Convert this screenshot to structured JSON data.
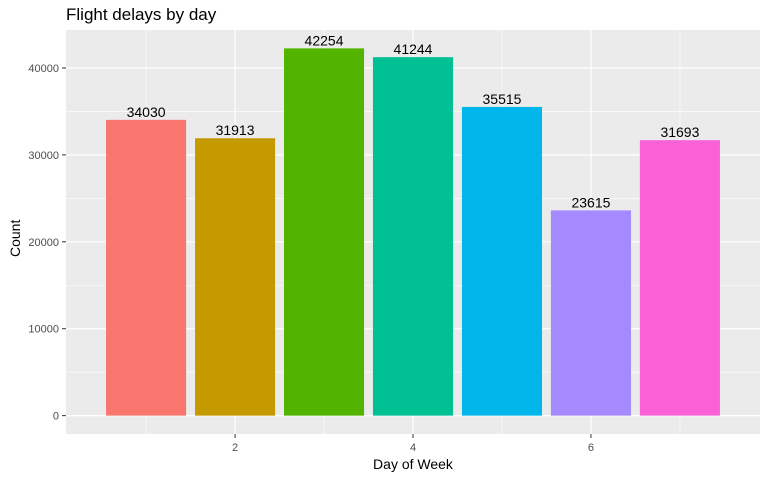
{
  "chart_data": {
    "type": "bar",
    "title": "Flight delays by day",
    "xlabel": "Day of Week",
    "ylabel": "Count",
    "categories": [
      1,
      2,
      3,
      4,
      5,
      6,
      7
    ],
    "values": [
      34030,
      31913,
      42254,
      41244,
      35515,
      23615,
      31693
    ],
    "colors": [
      "#F8766D",
      "#C49A00",
      "#53B400",
      "#00C094",
      "#00B6EB",
      "#A58AFF",
      "#FB61D7"
    ],
    "xlim": [
      0.1,
      7.9
    ],
    "ylim": [
      -2113,
      44367
    ],
    "x_ticks": [
      2,
      4,
      6
    ],
    "y_ticks": [
      0,
      10000,
      20000,
      30000,
      40000
    ],
    "grid": true,
    "legend": "none",
    "panel_background": "#EBEBEB",
    "grid_color": "#FFFFFF"
  }
}
